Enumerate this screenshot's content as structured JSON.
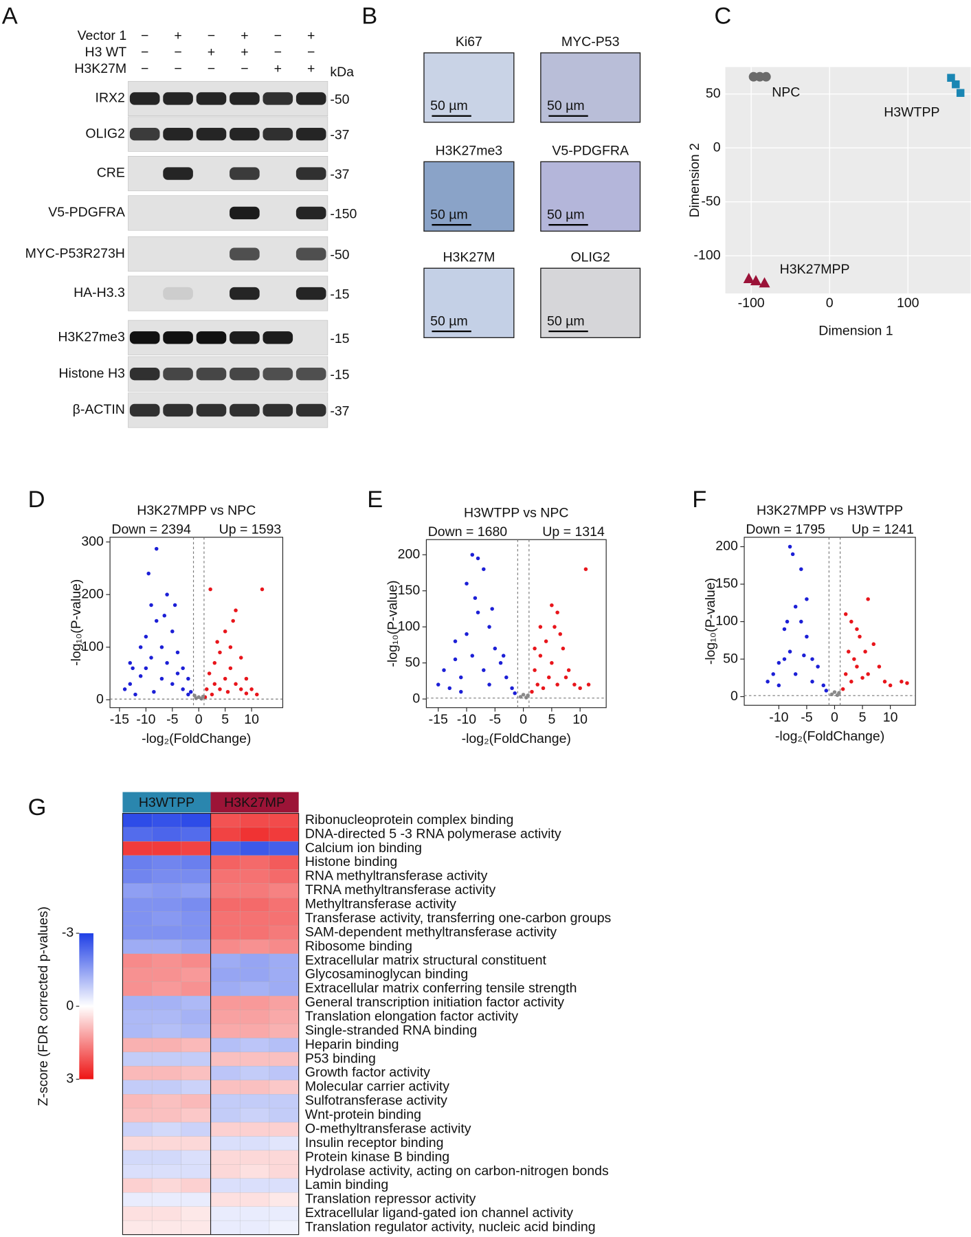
{
  "panel_labels": [
    "A",
    "B",
    "C",
    "D",
    "E",
    "F",
    "G"
  ],
  "western_blot": {
    "conditions": [
      {
        "name": "Vector 1",
        "signs": [
          "−",
          "+",
          "−",
          "+",
          "−",
          "+"
        ]
      },
      {
        "name": "H3 WT",
        "signs": [
          "−",
          "−",
          "+",
          "+",
          "−",
          "−"
        ]
      },
      {
        "name": "H3K27M",
        "signs": [
          "−",
          "−",
          "−",
          "−",
          "+",
          "+"
        ]
      }
    ],
    "unit": "kDa",
    "bands": [
      {
        "name": "IRX2",
        "marker": "-50",
        "intensity": [
          0.9,
          0.9,
          0.9,
          0.9,
          0.85,
          0.9
        ]
      },
      {
        "name": "OLIG2",
        "marker": "-37",
        "intensity": [
          0.8,
          0.9,
          0.9,
          0.9,
          0.85,
          0.9
        ]
      },
      {
        "name": "CRE",
        "marker": "-37",
        "intensity": [
          0,
          0.9,
          0,
          0.8,
          0,
          0.85
        ]
      },
      {
        "name": "V5-PDGFRA",
        "marker": "-150",
        "intensity": [
          0,
          0,
          0,
          0.95,
          0,
          0.9
        ]
      },
      {
        "name": "MYC-P53R273H",
        "marker": "-50",
        "intensity": [
          0,
          0,
          0,
          0.7,
          0,
          0.7
        ]
      },
      {
        "name": "HA-H3.3",
        "marker": "-15",
        "intensity": [
          0,
          0.1,
          0,
          0.9,
          0,
          0.9
        ]
      },
      {
        "name": "H3K27me3",
        "marker": "-15",
        "intensity": [
          1,
          1,
          1,
          0.95,
          0.95,
          0
        ]
      },
      {
        "name": "Histone H3",
        "marker": "-15",
        "intensity": [
          0.85,
          0.75,
          0.75,
          0.75,
          0.7,
          0.7
        ]
      },
      {
        "name": "β-ACTIN",
        "marker": "-37",
        "intensity": [
          0.85,
          0.85,
          0.85,
          0.85,
          0.85,
          0.85
        ]
      }
    ]
  },
  "ihc": {
    "scale_bar": "50 µm",
    "stains": [
      "Ki67",
      "MYC-P53",
      "H3K27me3",
      "V5-PDGFRA",
      "H3K27M",
      "OLIG2"
    ]
  },
  "chart_data": [
    {
      "type": "scatter",
      "xlabel": "Dimension 1",
      "ylabel": "Dimension 2",
      "xlim": [
        -133,
        180
      ],
      "ylim": [
        -135,
        75
      ],
      "xticks": [
        -100,
        0,
        100
      ],
      "yticks": [
        -100,
        -50,
        0,
        50
      ],
      "grid": true,
      "series": [
        {
          "name": "NPC",
          "color": "#6b6b6b",
          "marker": "circle",
          "x": [
            -97,
            -89,
            -81
          ],
          "values": [
            66,
            66,
            66
          ]
        },
        {
          "name": "H3WTPP",
          "color": "#1a86b3",
          "marker": "square",
          "x": [
            155,
            161,
            167
          ],
          "values": [
            65,
            59,
            51
          ]
        },
        {
          "name": "H3K27MPP",
          "color": "#9b1238",
          "marker": "triangle",
          "x": [
            -103,
            -94,
            -83
          ],
          "values": [
            -121,
            -123,
            -125
          ]
        }
      ]
    },
    {
      "type": "volcano",
      "title": "H3K27MPP vs NPC",
      "annotations": [
        "Down = 2394",
        "Up = 1593"
      ],
      "xlabel": "-log₂(FoldChange)",
      "ylabel": "-log₁₀(P-value)",
      "xlim": [
        -16.8,
        15.9
      ],
      "ylim": [
        -15,
        309
      ],
      "xticks": [
        -15,
        -10,
        -5,
        0,
        5,
        10
      ],
      "yticks": [
        0,
        100,
        200,
        300
      ],
      "vlines": [
        -1,
        1
      ],
      "hline": 1.3,
      "series": [
        {
          "color": "#1c1fd6",
          "x": [
            -14,
            -13,
            -12,
            -11,
            -10,
            -10,
            -9,
            -9,
            -8,
            -8,
            -7,
            -7,
            -6,
            -6,
            -5,
            -5,
            -4,
            -4,
            -3,
            -3,
            -2,
            -2,
            -1.5,
            -11,
            -9.5,
            -12.5,
            -6.5,
            -13,
            -8.5,
            -4.5
          ],
          "values": [
            20,
            30,
            10,
            45,
            60,
            120,
            80,
            180,
            287,
            150,
            100,
            40,
            200,
            70,
            130,
            30,
            90,
            50,
            60,
            20,
            40,
            10,
            15,
            100,
            240,
            60,
            160,
            70,
            15,
            180
          ]
        },
        {
          "color": "#e8151b",
          "x": [
            1.5,
            2,
            2.5,
            3,
            3,
            4,
            4,
            5,
            5,
            6,
            6.5,
            7,
            7,
            8,
            8,
            9,
            10,
            11,
            12,
            1.2,
            2.2,
            5.5,
            3.5,
            9,
            6
          ],
          "values": [
            20,
            50,
            10,
            70,
            30,
            90,
            20,
            40,
            130,
            60,
            150,
            170,
            30,
            80,
            20,
            40,
            20,
            10,
            210,
            5,
            210,
            15,
            110,
            12,
            100
          ]
        },
        {
          "color": "#8a8a8a",
          "x": [
            -0.5,
            0,
            0.5,
            -0.8,
            0.8
          ],
          "values": [
            3,
            5,
            2,
            8,
            6
          ]
        }
      ]
    },
    {
      "type": "volcano",
      "title": "H3WTPP vs NPC",
      "annotations": [
        "Down = 1680",
        "Up = 1314"
      ],
      "xlabel": "-log₂(FoldChange)",
      "ylabel": "-log₁₀(P-value)",
      "xlim": [
        -17.1,
        14.6
      ],
      "ylim": [
        -12,
        221
      ],
      "xticks": [
        -15,
        -10,
        -5,
        0,
        5,
        10
      ],
      "yticks": [
        0,
        50,
        100,
        150,
        200
      ],
      "vlines": [
        -1,
        1
      ],
      "hline": 1.3,
      "series": [
        {
          "color": "#1c1fd6",
          "x": [
            -15,
            -14,
            -13,
            -12,
            -11,
            -10,
            -10,
            -9,
            -9,
            -8,
            -8,
            -7,
            -7,
            -6,
            -6,
            -5,
            -4,
            -3,
            -2,
            -1.5,
            -12,
            -8.5,
            -5.5,
            -3.5,
            -11
          ],
          "values": [
            20,
            40,
            15,
            55,
            30,
            90,
            160,
            200,
            60,
            195,
            120,
            180,
            40,
            100,
            20,
            70,
            50,
            30,
            15,
            8,
            80,
            140,
            125,
            60,
            10
          ]
        },
        {
          "color": "#e8151b",
          "x": [
            1.5,
            2,
            2.5,
            3,
            3.5,
            4,
            4.5,
            5,
            5,
            5.5,
            6,
            6,
            7,
            7.5,
            8,
            9,
            10,
            11,
            11.5,
            2,
            3,
            6.5
          ],
          "values": [
            10,
            40,
            20,
            60,
            15,
            80,
            30,
            130,
            50,
            100,
            120,
            20,
            70,
            30,
            40,
            20,
            15,
            180,
            20,
            70,
            100,
            90
          ]
        },
        {
          "color": "#8a8a8a",
          "x": [
            -0.5,
            0,
            0.5,
            0.8
          ],
          "values": [
            3,
            6,
            2,
            5
          ]
        }
      ]
    },
    {
      "type": "volcano",
      "title": "H3K27MPP vs H3WTPP",
      "annotations": [
        "Down = 1795",
        "Up = 1241"
      ],
      "xlabel": "-log₂(FoldChange)",
      "ylabel": "-log₁₀(P-value)",
      "xlim": [
        -16.2,
        14.5
      ],
      "ylim": [
        -11.6,
        212.6
      ],
      "xticks": [
        -10,
        -5,
        0,
        5,
        10
      ],
      "yticks": [
        0,
        50,
        100,
        150,
        200
      ],
      "vlines": [
        -1,
        1
      ],
      "hline": 1.3,
      "series": [
        {
          "color": "#1c1fd6",
          "x": [
            -12,
            -11,
            -10,
            -9,
            -9,
            -8,
            -8,
            -7.5,
            -7,
            -7,
            -6,
            -6,
            -5,
            -5,
            -4,
            -4,
            -3,
            -2,
            -1.5,
            -10,
            -8.5,
            -5.5
          ],
          "values": [
            20,
            30,
            15,
            50,
            90,
            200,
            60,
            190,
            120,
            30,
            100,
            170,
            80,
            130,
            50,
            20,
            40,
            15,
            8,
            45,
            100,
            55
          ]
        },
        {
          "color": "#e8151b",
          "x": [
            1.5,
            2,
            2.5,
            3,
            3,
            4,
            4.5,
            5,
            5.5,
            6,
            6,
            7,
            8,
            9,
            10,
            12,
            13,
            2,
            4,
            3.5
          ],
          "values": [
            10,
            30,
            60,
            20,
            100,
            40,
            80,
            25,
            60,
            130,
            30,
            70,
            40,
            20,
            15,
            20,
            18,
            110,
            90,
            50
          ]
        },
        {
          "color": "#8a8a8a",
          "x": [
            -0.5,
            0,
            0.5,
            0.8
          ],
          "values": [
            3,
            6,
            2,
            5
          ]
        }
      ]
    },
    {
      "type": "heatmap",
      "groups": [
        {
          "name": "H3WTPP",
          "color": "#2a86ae",
          "columns": 3
        },
        {
          "name": "H3K27MP",
          "color": "#9c1437",
          "columns": 3
        }
      ],
      "clim": [
        -3,
        3
      ],
      "cticks": [
        -3,
        0,
        3
      ],
      "colormap": {
        "low": "#1f3fe6",
        "mid": "#ffffff",
        "high": "#ee1414"
      },
      "colorbar_label": "Z-score (FDR corrected p-values)",
      "rows": [
        {
          "term": "Ribonucleoprotein complex binding",
          "values": [
            -2.8,
            -2.7,
            -2.8,
            2.2,
            2.3,
            2.3
          ]
        },
        {
          "term": "DNA-directed 5 -3 RNA polymerase activity",
          "values": [
            -2.3,
            -2.4,
            -2.3,
            2.4,
            2.6,
            2.5
          ]
        },
        {
          "term": "Calcium ion binding",
          "values": [
            2.5,
            2.5,
            2.4,
            -2.4,
            -2.6,
            -2.5
          ]
        },
        {
          "term": "Histone binding",
          "values": [
            -2.0,
            -1.9,
            -2.0,
            2.0,
            1.9,
            2.1
          ]
        },
        {
          "term": "RNA methyltransferase activity",
          "values": [
            -1.9,
            -1.8,
            -1.8,
            1.8,
            1.8,
            1.9
          ]
        },
        {
          "term": "TRNA methyltransferase activity",
          "values": [
            -1.5,
            -1.6,
            -1.5,
            1.7,
            1.7,
            1.6
          ]
        },
        {
          "term": "Methyltransferase activity",
          "values": [
            -1.7,
            -1.7,
            -1.8,
            1.9,
            1.9,
            1.8
          ],
          "label_color": "#d42a2a"
        },
        {
          "term": "Transferase activity, transferring one-carbon groups",
          "values": [
            -1.7,
            -1.6,
            -1.7,
            1.8,
            1.8,
            1.8
          ]
        },
        {
          "term": "SAM-dependent methyltransferase activity",
          "values": [
            -1.7,
            -1.7,
            -1.7,
            1.8,
            1.8,
            1.7
          ],
          "label_color": "#d42a2a"
        },
        {
          "term": "Ribosome binding",
          "values": [
            -1.3,
            -1.3,
            -1.4,
            1.5,
            1.4,
            1.5
          ]
        },
        {
          "term": "Extracellular matrix structural constituent",
          "values": [
            1.5,
            1.4,
            1.5,
            -1.3,
            -1.4,
            -1.3
          ]
        },
        {
          "term": "Glycosaminoglycan binding",
          "values": [
            1.4,
            1.4,
            1.3,
            -1.4,
            -1.4,
            -1.3
          ]
        },
        {
          "term": "Extracellular matrix conferring tensile strength",
          "values": [
            1.4,
            1.3,
            1.4,
            -1.3,
            -1.2,
            -1.3
          ]
        },
        {
          "term": "General transcription initiation factor activity",
          "values": [
            -1.2,
            -1.2,
            -1.1,
            1.3,
            1.3,
            1.2
          ]
        },
        {
          "term": "Translation elongation factor activity",
          "values": [
            -1.1,
            -1.1,
            -1.2,
            1.2,
            1.2,
            1.1
          ]
        },
        {
          "term": "Single-stranded RNA binding",
          "values": [
            -1.1,
            -1.0,
            -1.1,
            1.1,
            1.1,
            1.0
          ]
        },
        {
          "term": "Heparin binding",
          "values": [
            1.0,
            1.0,
            0.9,
            -1.0,
            -0.9,
            -1.0
          ]
        },
        {
          "term": "P53 binding",
          "values": [
            -0.8,
            -0.8,
            -0.8,
            0.8,
            0.8,
            0.8
          ]
        },
        {
          "term": "Growth factor activity",
          "values": [
            0.9,
            0.9,
            0.8,
            -0.9,
            -0.8,
            -0.9
          ]
        },
        {
          "term": "Molecular carrier activity",
          "values": [
            -0.8,
            -0.8,
            -0.7,
            0.8,
            0.8,
            0.7
          ]
        },
        {
          "term": "Sulfotransferase activity",
          "values": [
            0.9,
            0.8,
            0.9,
            -0.8,
            -0.8,
            -0.8
          ]
        },
        {
          "term": "Wnt-protein binding",
          "values": [
            0.8,
            0.8,
            0.7,
            -0.8,
            -0.7,
            -0.8
          ]
        },
        {
          "term": "O-methyltransferase activity",
          "values": [
            -0.7,
            -0.6,
            -0.7,
            0.6,
            0.6,
            0.6
          ]
        },
        {
          "term": "Insulin receptor binding",
          "values": [
            0.5,
            0.5,
            0.5,
            -0.5,
            -0.5,
            -0.4
          ]
        },
        {
          "term": "Protein kinase B binding",
          "values": [
            -0.6,
            -0.6,
            -0.5,
            0.5,
            0.5,
            0.5
          ]
        },
        {
          "term": "Hydrolase activity, acting on carbon-nitrogen bonds",
          "values": [
            -0.5,
            -0.5,
            -0.5,
            0.5,
            0.4,
            0.5
          ]
        },
        {
          "term": "Lamin binding",
          "values": [
            0.6,
            0.5,
            0.6,
            -0.5,
            -0.5,
            -0.5
          ]
        },
        {
          "term": "Translation repressor activity",
          "values": [
            -0.3,
            -0.3,
            -0.3,
            0.4,
            0.4,
            0.3
          ]
        },
        {
          "term": "Extracellular ligand-gated ion channel activity",
          "values": [
            0.4,
            0.4,
            0.3,
            -0.3,
            -0.3,
            -0.3
          ]
        },
        {
          "term": "Translation regulator activity, nucleic acid binding",
          "values": [
            0.3,
            0.3,
            0.3,
            -0.3,
            -0.3,
            -0.2
          ]
        }
      ]
    }
  ]
}
